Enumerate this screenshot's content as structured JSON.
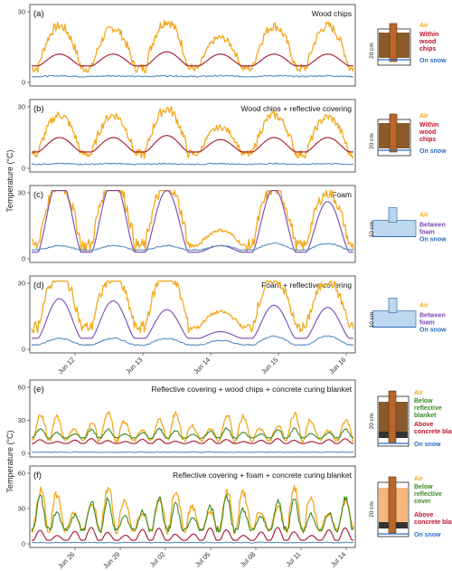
{
  "chart_data": {
    "type": "line",
    "y_axis_label": "Temperature (°C)",
    "colors": {
      "air": "#f2a81d",
      "woodchips": "#a3162f",
      "foam": "#7a49b0",
      "snow": "#5b90c0",
      "reflective": "#3d8a23"
    },
    "panels": [
      {
        "id": "a",
        "label": "(a)",
        "title": "Wood chips",
        "ylim": [
          0,
          30
        ],
        "yticks": [
          0,
          30
        ],
        "period": "jun",
        "schematic": "woodchips",
        "schematic_labels": {
          "top": "Air",
          "middle": "Within wood chips",
          "bottom": "On snow",
          "dim": "20 cm"
        },
        "series": [
          {
            "key": "air",
            "amps": [
              18,
              17,
              20,
              13,
              18,
              18
            ],
            "base": 6
          },
          {
            "key": "woodchips",
            "amps": [
              5,
              5,
              6,
              5,
              5,
              5
            ],
            "base": 7
          },
          {
            "key": "snow",
            "amps": [
              0.3,
              0.3,
              0.3,
              0.3,
              0.3,
              0.3
            ],
            "base": 2.5
          }
        ]
      },
      {
        "id": "b",
        "label": "(b)",
        "title": "Wood chips + reflective covering",
        "ylim": [
          0,
          30
        ],
        "yticks": [
          0,
          30
        ],
        "period": "jun",
        "schematic": "woodchips",
        "schematic_labels": {
          "top": "Air",
          "middle": "Within wood chips",
          "bottom": "On snow",
          "dim": "20 cm"
        },
        "series": [
          {
            "key": "air",
            "amps": [
              19,
              19,
              22,
              13,
              19,
              18
            ],
            "base": 7
          },
          {
            "key": "woodchips",
            "amps": [
              7,
              7,
              8,
              6,
              7,
              7
            ],
            "base": 8
          },
          {
            "key": "snow",
            "amps": [
              0.3,
              0.3,
              0.3,
              0.3,
              0.3,
              0.3
            ],
            "base": 2
          }
        ]
      },
      {
        "id": "c",
        "label": "(c)",
        "title": "Foam",
        "ylim": [
          0,
          30
        ],
        "yticks": [
          0,
          30
        ],
        "period": "jun",
        "schematic": "foam",
        "schematic_labels": {
          "top": "Air",
          "middle": "Between foam",
          "bottom": "On snow",
          "dim": "10 cm"
        },
        "series": [
          {
            "key": "air",
            "amps": [
              28,
              30,
              28,
              7,
              26,
              24
            ],
            "base": 6
          },
          {
            "key": "foam",
            "amps": [
              34,
              33,
              28,
              3,
              29,
              23
            ],
            "base": 3
          },
          {
            "key": "snow",
            "amps": [
              2,
              2,
              2,
              2,
              3,
              3
            ],
            "base": 4
          }
        ]
      },
      {
        "id": "d",
        "label": "(d)",
        "title": "Foam + reflective covering",
        "ylim": [
          0,
          30
        ],
        "yticks": [
          0,
          30
        ],
        "period": "jun",
        "schematic": "foam",
        "schematic_labels": {
          "top": "Air",
          "middle": "Between foam",
          "bottom": "On snow",
          "dim": "10 cm"
        },
        "series": [
          {
            "key": "air",
            "amps": [
              24,
              23,
              25,
              7,
              22,
              21
            ],
            "base": 10
          },
          {
            "key": "foam",
            "amps": [
              18,
              17,
              13,
              3,
              15,
              14
            ],
            "base": 5
          },
          {
            "key": "snow",
            "amps": [
              3,
              3,
              3,
              2,
              4,
              4
            ],
            "base": 2
          }
        ]
      },
      {
        "id": "e",
        "label": "(e)",
        "title": "Reflective covering + wood chips + concrete curing blanket",
        "ylim": [
          0,
          60
        ],
        "yticks": [
          0,
          30,
          60
        ],
        "period": "jul",
        "schematic": "blanket-woodchips",
        "schematic_labels": {
          "top": "Air",
          "middle": "Below reflective blanket",
          "bottom": "Above concrete blanket",
          "extra": "On snow",
          "dim": "20 cm"
        },
        "series": [
          {
            "key": "air",
            "amps": [
              22
            ],
            "base": 12
          },
          {
            "key": "reflective",
            "amps": [
              8
            ],
            "base": 14
          },
          {
            "key": "woodchips",
            "amps": [
              4
            ],
            "base": 9
          },
          {
            "key": "snow",
            "amps": [
              0.2
            ],
            "base": 1
          }
        ]
      },
      {
        "id": "f",
        "label": "(f)",
        "title": "Reflective covering + foam + concrete curing blanket",
        "ylim": [
          0,
          60
        ],
        "yticks": [
          0,
          30,
          60
        ],
        "period": "jul",
        "schematic": "blanket-foam",
        "schematic_labels": {
          "top": "Air",
          "middle": "Below reflective cover",
          "bottom": "Above concrete blanket",
          "extra": "On snow",
          "dim": "20 cm"
        },
        "series": [
          {
            "key": "air",
            "amps": [
              32
            ],
            "base": 12
          },
          {
            "key": "reflective",
            "amps": [
              26
            ],
            "base": 12
          },
          {
            "key": "woodchips",
            "amps": [
              10
            ],
            "base": 3
          },
          {
            "key": "snow",
            "amps": [
              0.3
            ],
            "base": 1
          }
        ]
      }
    ],
    "x_axis_top": {
      "ticks": [
        "Jun 12",
        "Jun 13",
        "Jun 14",
        "Jun 15",
        "Jun 16"
      ]
    },
    "x_axis_bottom": {
      "ticks": [
        "Jun 26",
        "Jun 29",
        "Jul 02",
        "Jul 05",
        "Jul 08",
        "Jul 11",
        "Jul 14"
      ]
    }
  }
}
